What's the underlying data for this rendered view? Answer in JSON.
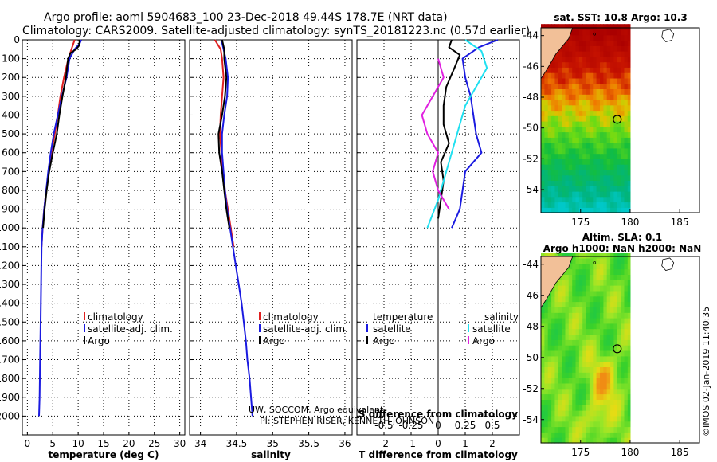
{
  "title": {
    "line1": "Argo profile: aoml 5904683_100 23-Dec-2018 49.44S 178.7E (NRT data)",
    "line2": "Climatology: CARS2009. Satellite-adjusted climatology: synTS_20181223.nc (0.57d earlier)"
  },
  "credit": {
    "line1": "UW, SOCCOM, Argo equivalent",
    "line2": "PI: STEPHEN RISER, KENNETH JOHNSON"
  },
  "timestamp": "©IMOS 02-Jan-2019 11:40:35",
  "colors": {
    "climatology": "#e02020",
    "satellite": "#1a1ae0",
    "argo": "#000000",
    "sal_sat": "#20e0f0",
    "sal_argo": "#e020e0"
  },
  "chart_data": [
    {
      "type": "line",
      "name": "temperature",
      "xlabel": "temperature (deg C)",
      "ylabel": "depth",
      "xlim": [
        -1,
        31
      ],
      "ylim": [
        0,
        2100
      ],
      "xticks": [
        0,
        5,
        10,
        15,
        20,
        25,
        30
      ],
      "yticks": [
        0,
        100,
        200,
        300,
        400,
        500,
        600,
        700,
        800,
        900,
        1000,
        1100,
        1200,
        1300,
        1400,
        1500,
        1600,
        1700,
        1800,
        1900,
        2000
      ],
      "legend": [
        "climatology",
        "satellite-adj. clim.",
        "Argo"
      ],
      "series": [
        {
          "name": "climatology",
          "points": [
            [
              9.3,
              0
            ],
            [
              8.8,
              40
            ],
            [
              8.3,
              80
            ],
            [
              7.9,
              120
            ],
            [
              7.2,
              200
            ],
            [
              6.5,
              300
            ],
            [
              6.0,
              400
            ],
            [
              5.4,
              500
            ],
            [
              4.7,
              600
            ],
            [
              4.2,
              700
            ],
            [
              3.7,
              800
            ],
            [
              3.3,
              900
            ],
            [
              3.0,
              1000
            ],
            [
              2.8,
              1100
            ]
          ]
        },
        {
          "name": "satellite-adj. clim.",
          "points": [
            [
              10.6,
              0
            ],
            [
              10.3,
              20
            ],
            [
              9.3,
              50
            ],
            [
              8.3,
              100
            ],
            [
              7.7,
              200
            ],
            [
              6.8,
              300
            ],
            [
              6.0,
              400
            ],
            [
              5.2,
              500
            ],
            [
              4.6,
              600
            ],
            [
              4.1,
              700
            ],
            [
              3.7,
              800
            ],
            [
              3.3,
              900
            ],
            [
              3.0,
              1000
            ],
            [
              2.8,
              1100
            ],
            [
              2.7,
              1300
            ],
            [
              2.6,
              1500
            ],
            [
              2.5,
              1700
            ],
            [
              2.4,
              1900
            ],
            [
              2.3,
              2000
            ]
          ]
        },
        {
          "name": "Argo",
          "points": [
            [
              10.3,
              0
            ],
            [
              10.2,
              30
            ],
            [
              9.6,
              50
            ],
            [
              8.5,
              70
            ],
            [
              8.0,
              100
            ],
            [
              7.6,
              200
            ],
            [
              6.9,
              300
            ],
            [
              6.3,
              400
            ],
            [
              5.8,
              500
            ],
            [
              5.0,
              600
            ],
            [
              4.3,
              700
            ],
            [
              3.8,
              800
            ],
            [
              3.4,
              900
            ],
            [
              3.1,
              1000
            ]
          ]
        }
      ]
    },
    {
      "type": "line",
      "name": "salinity",
      "xlabel": "salinity",
      "xlim": [
        33.85,
        36.1
      ],
      "ylim": [
        0,
        2100
      ],
      "xticks": [
        34,
        34.5,
        35,
        35.5,
        36
      ],
      "legend": [
        "climatology",
        "satellite-adj. clim.",
        "Argo"
      ],
      "series": [
        {
          "name": "climatology",
          "points": [
            [
              34.2,
              0
            ],
            [
              34.28,
              50
            ],
            [
              34.3,
              100
            ],
            [
              34.32,
              200
            ],
            [
              34.3,
              300
            ],
            [
              34.28,
              400
            ],
            [
              34.27,
              500
            ],
            [
              34.29,
              600
            ],
            [
              34.31,
              700
            ],
            [
              34.34,
              800
            ],
            [
              34.38,
              900
            ],
            [
              34.42,
              1000
            ],
            [
              34.46,
              1100
            ]
          ]
        },
        {
          "name": "satellite-adj. clim.",
          "points": [
            [
              34.29,
              0
            ],
            [
              34.32,
              50
            ],
            [
              34.35,
              100
            ],
            [
              34.38,
              200
            ],
            [
              34.37,
              300
            ],
            [
              34.33,
              400
            ],
            [
              34.3,
              500
            ],
            [
              34.3,
              600
            ],
            [
              34.32,
              700
            ],
            [
              34.34,
              800
            ],
            [
              34.37,
              900
            ],
            [
              34.41,
              1000
            ],
            [
              34.45,
              1100
            ],
            [
              34.49,
              1200
            ],
            [
              34.53,
              1300
            ],
            [
              34.57,
              1400
            ],
            [
              34.6,
              1500
            ],
            [
              34.63,
              1600
            ],
            [
              34.65,
              1700
            ],
            [
              34.68,
              1800
            ],
            [
              34.7,
              1900
            ],
            [
              34.72,
              2000
            ]
          ]
        },
        {
          "name": "Argo",
          "points": [
            [
              34.3,
              0
            ],
            [
              34.33,
              50
            ],
            [
              34.33,
              100
            ],
            [
              34.36,
              200
            ],
            [
              34.34,
              300
            ],
            [
              34.3,
              400
            ],
            [
              34.25,
              500
            ],
            [
              34.26,
              600
            ],
            [
              34.3,
              700
            ],
            [
              34.33,
              800
            ],
            [
              34.36,
              900
            ],
            [
              34.4,
              1000
            ]
          ]
        }
      ]
    },
    {
      "type": "line",
      "name": "differences",
      "xlabel": "T difference from climatology",
      "xlabel_top": "S difference from climatology",
      "xlim": [
        -3,
        3
      ],
      "ylim": [
        0,
        2100
      ],
      "xticks": [
        -2,
        -1,
        0,
        1,
        2
      ],
      "xticks_top_labels": [
        "-0.5",
        "-0.25",
        "0",
        "0.25",
        "0.5"
      ],
      "legend_left_title": "temperature",
      "legend_right_title": "salinity",
      "legend_left": [
        "satellite",
        "Argo"
      ],
      "legend_right": [
        "satellite",
        "Argo"
      ],
      "series": [
        {
          "name": "T satellite",
          "points": [
            [
              2.2,
              0
            ],
            [
              1.5,
              40
            ],
            [
              0.9,
              100
            ],
            [
              1.0,
              200
            ],
            [
              1.2,
              300
            ],
            [
              1.3,
              400
            ],
            [
              1.4,
              500
            ],
            [
              1.6,
              600
            ],
            [
              1.0,
              700
            ],
            [
              0.9,
              800
            ],
            [
              0.8,
              900
            ],
            [
              0.5,
              1000
            ]
          ]
        },
        {
          "name": "T Argo",
          "points": [
            [
              0.5,
              0
            ],
            [
              0.4,
              40
            ],
            [
              0.8,
              80
            ],
            [
              0.6,
              150
            ],
            [
              0.3,
              250
            ],
            [
              0.2,
              350
            ],
            [
              0.2,
              450
            ],
            [
              0.4,
              550
            ],
            [
              0.1,
              650
            ],
            [
              0.2,
              750
            ],
            [
              0.1,
              850
            ],
            [
              0.0,
              950
            ]
          ]
        },
        {
          "name": "S satellite",
          "points": [
            [
              0.25,
              0
            ],
            [
              0.4,
              60
            ],
            [
              0.45,
              150
            ],
            [
              0.35,
              250
            ],
            [
              0.25,
              350
            ],
            [
              0.2,
              450
            ],
            [
              0.15,
              550
            ],
            [
              0.1,
              650
            ],
            [
              0.05,
              750
            ],
            [
              0.0,
              850
            ],
            [
              -0.1,
              1000
            ]
          ]
        },
        {
          "name": "S Argo",
          "points": [
            [
              0.0,
              100
            ],
            [
              0.05,
              200
            ],
            [
              -0.05,
              300
            ],
            [
              -0.15,
              400
            ],
            [
              -0.1,
              500
            ],
            [
              0.0,
              600
            ],
            [
              -0.05,
              700
            ],
            [
              0.0,
              800
            ],
            [
              0.1,
              900
            ]
          ]
        }
      ]
    },
    {
      "type": "heatmap",
      "name": "sst_map",
      "title": "sat. SST: 10.8 Argo: 10.3",
      "xlim": [
        171,
        187
      ],
      "ylim": [
        -55.5,
        -43.5
      ],
      "xticks": [
        175,
        180,
        185
      ],
      "yticks": [
        -44,
        -46,
        -48,
        -50,
        -52,
        -54
      ],
      "argo_position": [
        178.7,
        -49.44
      ]
    },
    {
      "type": "heatmap",
      "name": "sla_map",
      "title": "Altim. SLA: 0.1",
      "title2": "Argo h1000: NaN h2000: NaN",
      "xlim": [
        171,
        187
      ],
      "ylim": [
        -55.5,
        -43.5
      ],
      "xticks": [
        175,
        180,
        185
      ],
      "yticks": [
        -44,
        -46,
        -48,
        -50,
        -52,
        -54
      ],
      "argo_position": [
        178.7,
        -49.44
      ]
    }
  ]
}
